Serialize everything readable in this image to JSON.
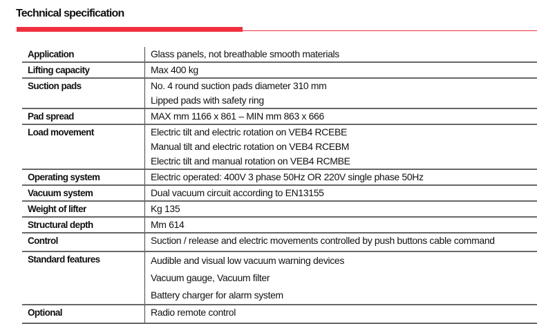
{
  "title": "Technical specification",
  "rows": [
    {
      "label": "Application",
      "lines": [
        "Glass panels, not breathable smooth materials"
      ]
    },
    {
      "label": "Lifting capacity",
      "lines": [
        "Max 400 kg"
      ]
    },
    {
      "label": "Suction pads",
      "lines": [
        "No. 4 round suction pads diameter 310 mm",
        "Lipped pads with safety ring"
      ]
    },
    {
      "label": "Pad spread",
      "lines": [
        "MAX mm 1166 x 861 – MIN mm 863 x 666"
      ]
    },
    {
      "label": "Load movement",
      "lines": [
        "Electric tilt and electric rotation on VEB4 RCEBE",
        "Manual tilt and electric rotation on VEB4 RCEBM",
        "Electric tilt and manual rotation on VEB4 RCMBE"
      ]
    },
    {
      "label": "Operating system",
      "lines": [
        "Electric operated: 400V 3 phase 50Hz OR 220V single phase 50Hz"
      ]
    },
    {
      "label": "Vacuum system",
      "lines": [
        "Dual vacuum circuit according to EN13155"
      ]
    },
    {
      "label": "Weight of lifter",
      "lines": [
        "Kg 135"
      ]
    },
    {
      "label": "Structural depth",
      "lines": [
        "Mm 614"
      ]
    },
    {
      "label": "Control",
      "lines": [
        "Suction / release and electric movements controlled by push buttons cable command"
      ]
    },
    {
      "label": "Standard features",
      "lines": [
        "Audible and visual low vacuum warning devices",
        "Vacuum gauge, Vacuum filter",
        "Battery charger for alarm system"
      ]
    },
    {
      "label": "Optional",
      "lines": [
        "Radio remote control"
      ]
    }
  ]
}
